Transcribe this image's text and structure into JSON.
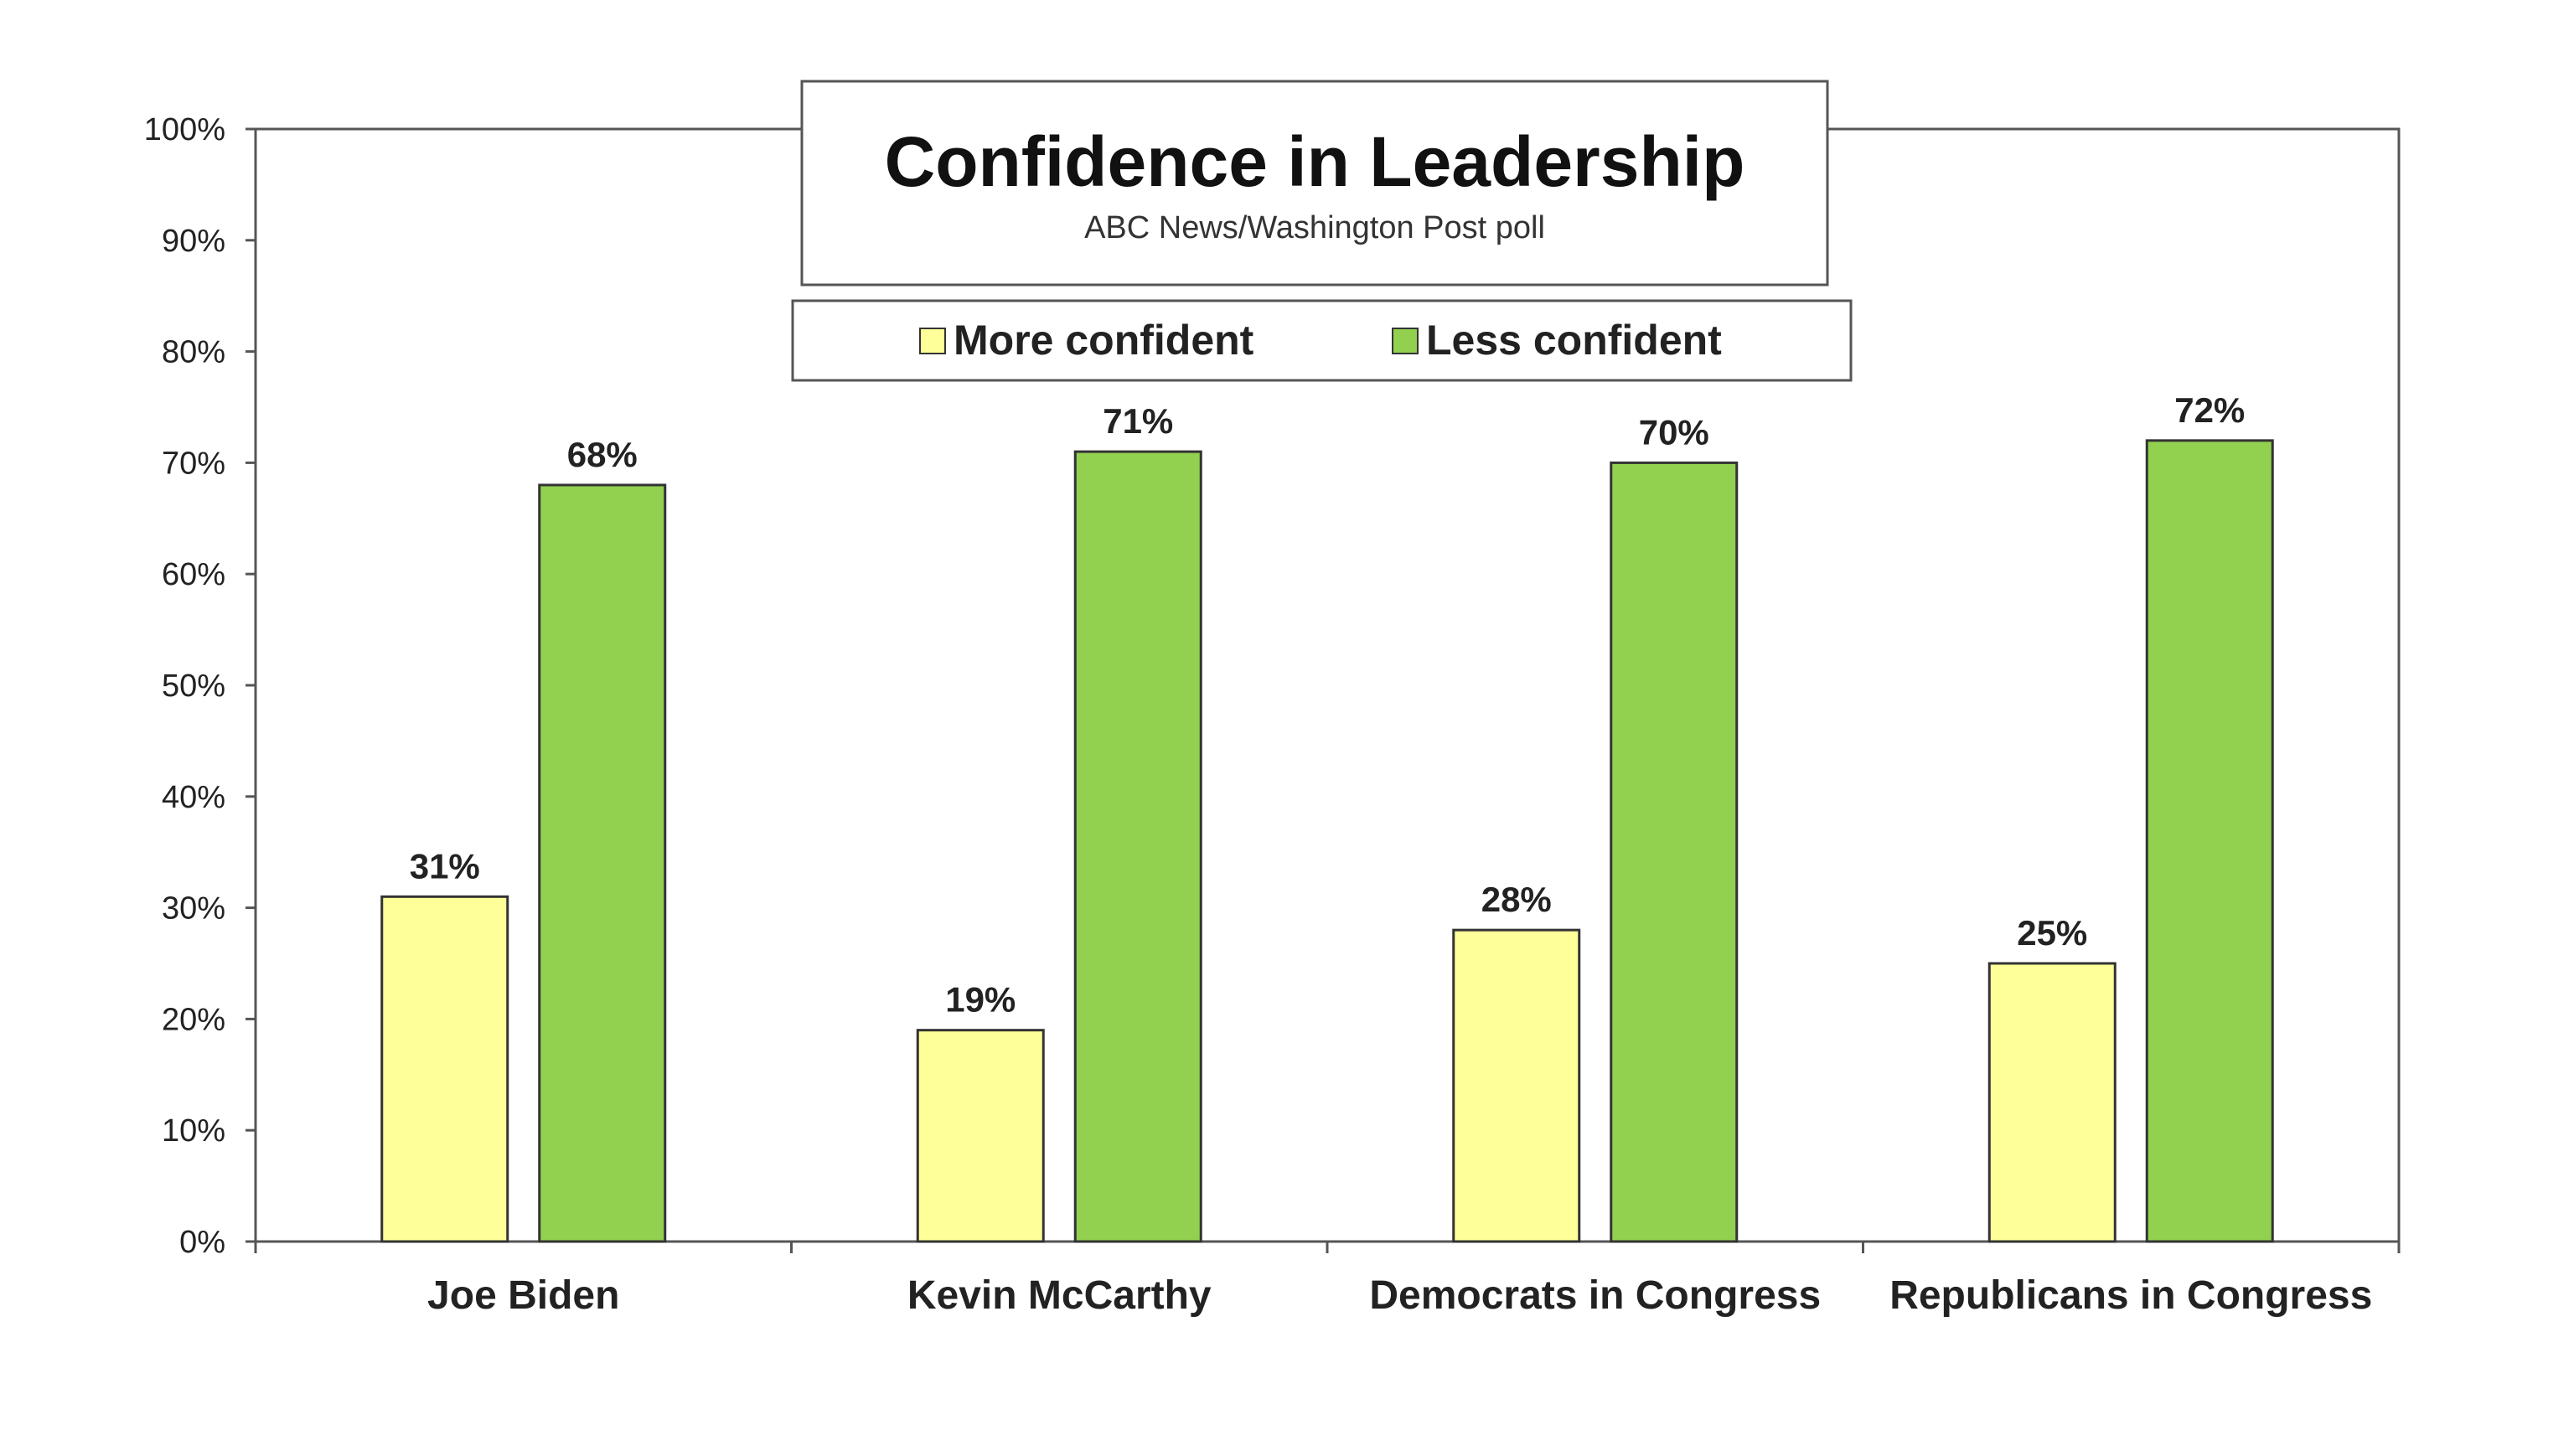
{
  "chart_data": {
    "type": "bar",
    "title": "Confidence in Leadership",
    "subtitle": "ABC News/Washington  Post poll",
    "categories": [
      "Joe Biden",
      "Kevin McCarthy",
      "Democrats in Congress",
      "Republicans in Congress"
    ],
    "series": [
      {
        "name": "More confident",
        "values": [
          31,
          19,
          28,
          25
        ],
        "labels": [
          "31%",
          "19%",
          "28%",
          "25%"
        ],
        "color": "#ffff99"
      },
      {
        "name": "Less confident",
        "values": [
          68,
          71,
          70,
          72
        ],
        "labels": [
          "68%",
          "71%",
          "70%",
          "72%"
        ],
        "color": "#92d050"
      }
    ],
    "ylim": [
      0,
      100
    ],
    "yticks": [
      0,
      10,
      20,
      30,
      40,
      50,
      60,
      70,
      80,
      90,
      100
    ],
    "ytick_labels": [
      "0%",
      "10%",
      "20%",
      "30%",
      "40%",
      "50%",
      "60%",
      "70%",
      "80%",
      "90%",
      "100%"
    ],
    "xlabel": "",
    "ylabel": "",
    "grid": false,
    "legend_position": "top-center",
    "data_labels": true
  }
}
